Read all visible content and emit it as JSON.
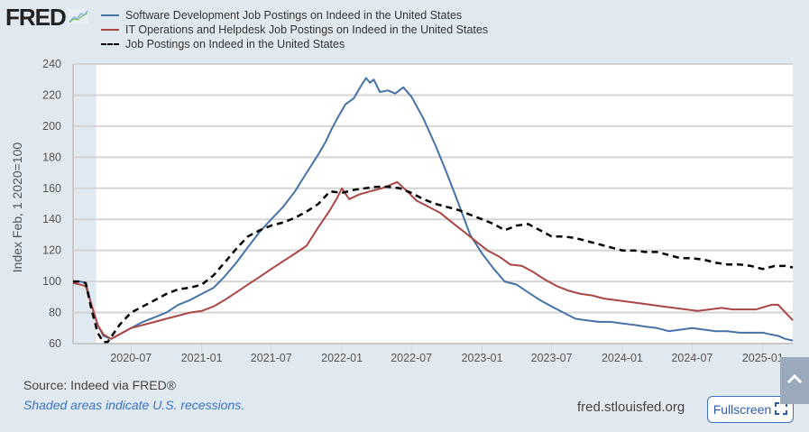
{
  "header": {
    "logo_text": "FRED",
    "logo_icon": "fred-graph-icon"
  },
  "legend": [
    {
      "label": "Software Development Job Postings on Indeed in the United States",
      "color": "#4572a7",
      "style": "solid"
    },
    {
      "label": "IT Operations and Helpdesk Job Postings on Indeed in the United States",
      "color": "#aa4643",
      "style": "solid"
    },
    {
      "label": "Job Postings on Indeed in the United States",
      "color": "#000000",
      "style": "dashed"
    }
  ],
  "footer": {
    "source": "Source: Indeed via FRED®",
    "note": "Shaded areas indicate U.S. recessions.",
    "site": "fred.stlouisfed.org",
    "fullscreen_label": "Fullscreen",
    "fullscreen_icon": "expand-icon",
    "scroll_top_icon": "chevron-up-icon"
  },
  "chart_data": {
    "type": "line",
    "title": "",
    "xlabel": "",
    "ylabel": "Index Feb, 1 2020=100",
    "ylim": [
      60,
      240
    ],
    "yticks": [
      60,
      80,
      100,
      120,
      140,
      160,
      180,
      200,
      220,
      240
    ],
    "xlim": [
      "2020-02-01",
      "2025-03-20"
    ],
    "xticks": [
      "2020-07",
      "2021-01",
      "2021-07",
      "2022-01",
      "2022-07",
      "2023-01",
      "2023-07",
      "2024-01",
      "2024-07",
      "2025-01"
    ],
    "grid": true,
    "legend_position": "top",
    "recessions": [
      [
        "2020-02-01",
        "2020-04-01"
      ]
    ],
    "colors": {
      "plot_bg": "#ffffff",
      "recession": "#e1e9f0",
      "grid": "#d4d4d4"
    },
    "series": [
      {
        "name": "Software Development Job Postings on Indeed in the United States",
        "color": "#4572a7",
        "dash": false,
        "x": [
          "2020-02-01",
          "2020-02-20",
          "2020-03-05",
          "2020-03-20",
          "2020-04-05",
          "2020-04-20",
          "2020-05-10",
          "2020-06-01",
          "2020-07-01",
          "2020-08-01",
          "2020-09-01",
          "2020-10-01",
          "2020-11-01",
          "2020-12-01",
          "2021-01-01",
          "2021-02-01",
          "2021-03-01",
          "2021-04-01",
          "2021-05-01",
          "2021-06-01",
          "2021-07-01",
          "2021-08-01",
          "2021-09-01",
          "2021-10-01",
          "2021-11-01",
          "2021-11-20",
          "2021-12-05",
          "2021-12-20",
          "2022-01-10",
          "2022-02-01",
          "2022-02-20",
          "2022-03-05",
          "2022-03-15",
          "2022-03-25",
          "2022-04-10",
          "2022-05-01",
          "2022-05-20",
          "2022-06-10",
          "2022-07-01",
          "2022-08-01",
          "2022-09-01",
          "2022-10-01",
          "2022-11-01",
          "2022-12-01",
          "2023-01-01",
          "2023-02-01",
          "2023-03-01",
          "2023-04-01",
          "2023-05-01",
          "2023-06-01",
          "2023-07-01",
          "2023-08-01",
          "2023-09-01",
          "2023-10-01",
          "2023-11-01",
          "2023-12-01",
          "2024-01-01",
          "2024-02-01",
          "2024-03-01",
          "2024-04-01",
          "2024-05-01",
          "2024-06-01",
          "2024-07-01",
          "2024-08-01",
          "2024-09-01",
          "2024-10-01",
          "2024-11-01",
          "2024-12-01",
          "2025-01-01",
          "2025-01-20",
          "2025-02-10",
          "2025-03-01",
          "2025-03-20"
        ],
        "values": [
          100,
          100,
          99,
          85,
          72,
          65,
          63,
          66,
          70,
          74,
          77,
          80,
          85,
          88,
          92,
          96,
          103,
          112,
          122,
          132,
          140,
          148,
          158,
          170,
          182,
          190,
          198,
          205,
          214,
          218,
          226,
          231,
          228,
          230,
          222,
          223,
          221,
          225,
          219,
          205,
          188,
          170,
          150,
          130,
          118,
          108,
          100,
          98,
          93,
          88,
          84,
          80,
          76,
          75,
          74,
          74,
          73,
          72,
          71,
          70,
          68,
          69,
          70,
          69,
          68,
          68,
          67,
          67,
          67,
          66,
          65,
          63,
          62
        ]
      },
      {
        "name": "IT Operations and Helpdesk Job Postings on Indeed in the United States",
        "color": "#aa4643",
        "dash": false,
        "x": [
          "2020-02-01",
          "2020-02-20",
          "2020-03-05",
          "2020-03-20",
          "2020-04-05",
          "2020-04-20",
          "2020-05-10",
          "2020-06-01",
          "2020-07-01",
          "2020-08-01",
          "2020-09-01",
          "2020-10-01",
          "2020-11-01",
          "2020-12-01",
          "2021-01-01",
          "2021-02-01",
          "2021-03-01",
          "2021-04-01",
          "2021-05-01",
          "2021-06-01",
          "2021-07-01",
          "2021-08-01",
          "2021-09-01",
          "2021-10-01",
          "2021-11-01",
          "2021-12-01",
          "2021-12-20",
          "2022-01-01",
          "2022-01-20",
          "2022-02-15",
          "2022-03-15",
          "2022-04-15",
          "2022-05-05",
          "2022-05-25",
          "2022-06-20",
          "2022-07-15",
          "2022-08-15",
          "2022-09-15",
          "2022-10-15",
          "2022-11-15",
          "2022-12-15",
          "2023-01-15",
          "2023-02-15",
          "2023-03-15",
          "2023-04-15",
          "2023-05-15",
          "2023-06-15",
          "2023-07-15",
          "2023-08-15",
          "2023-09-15",
          "2023-10-15",
          "2023-11-15",
          "2023-12-15",
          "2024-01-15",
          "2024-02-15",
          "2024-03-15",
          "2024-04-15",
          "2024-05-15",
          "2024-06-15",
          "2024-07-15",
          "2024-08-15",
          "2024-09-15",
          "2024-10-15",
          "2024-11-15",
          "2024-12-15",
          "2025-01-10",
          "2025-01-25",
          "2025-02-10",
          "2025-03-01",
          "2025-03-20"
        ],
        "values": [
          99,
          98,
          97,
          85,
          72,
          66,
          63,
          66,
          70,
          72,
          74,
          76,
          78,
          80,
          81,
          84,
          88,
          93,
          98,
          103,
          108,
          113,
          118,
          123,
          135,
          146,
          154,
          160,
          153,
          156,
          158,
          160,
          162,
          164,
          158,
          152,
          148,
          144,
          138,
          132,
          126,
          120,
          116,
          111,
          110,
          106,
          101,
          97,
          94,
          92,
          91,
          89,
          88,
          87,
          86,
          85,
          84,
          83,
          82,
          81,
          82,
          83,
          82,
          82,
          82,
          84,
          85,
          85,
          80,
          75
        ]
      },
      {
        "name": "Job Postings on Indeed in the United States",
        "color": "#000000",
        "dash": true,
        "x": [
          "2020-02-01",
          "2020-02-20",
          "2020-03-05",
          "2020-03-20",
          "2020-04-05",
          "2020-04-20",
          "2020-05-01",
          "2020-05-15",
          "2020-06-01",
          "2020-07-01",
          "2020-08-01",
          "2020-09-01",
          "2020-10-01",
          "2020-11-01",
          "2020-12-01",
          "2021-01-01",
          "2021-02-01",
          "2021-03-01",
          "2021-04-01",
          "2021-05-01",
          "2021-06-01",
          "2021-07-01",
          "2021-08-01",
          "2021-09-01",
          "2021-10-01",
          "2021-11-01",
          "2021-12-01",
          "2022-01-01",
          "2022-02-01",
          "2022-03-01",
          "2022-04-01",
          "2022-05-01",
          "2022-06-01",
          "2022-07-01",
          "2022-08-01",
          "2022-09-01",
          "2022-10-01",
          "2022-11-01",
          "2022-12-01",
          "2023-01-01",
          "2023-02-01",
          "2023-03-01",
          "2023-04-01",
          "2023-05-01",
          "2023-06-01",
          "2023-07-01",
          "2023-08-01",
          "2023-09-01",
          "2023-10-01",
          "2023-11-01",
          "2023-12-01",
          "2024-01-01",
          "2024-02-01",
          "2024-03-01",
          "2024-04-01",
          "2024-05-01",
          "2024-06-01",
          "2024-07-01",
          "2024-08-01",
          "2024-09-01",
          "2024-10-01",
          "2024-11-01",
          "2024-12-01",
          "2025-01-01",
          "2025-02-01",
          "2025-03-01",
          "2025-03-20"
        ],
        "values": [
          100,
          100,
          99,
          82,
          67,
          61,
          61,
          66,
          72,
          80,
          84,
          88,
          92,
          95,
          96,
          98,
          104,
          112,
          121,
          129,
          133,
          136,
          138,
          141,
          145,
          150,
          158,
          157,
          159,
          160,
          161,
          161,
          160,
          157,
          153,
          150,
          148,
          146,
          143,
          140,
          137,
          133,
          136,
          137,
          133,
          129,
          129,
          128,
          126,
          124,
          122,
          120,
          120,
          119,
          119,
          117,
          115,
          115,
          114,
          112,
          111,
          111,
          110,
          108,
          110,
          110,
          109
        ]
      }
    ]
  }
}
